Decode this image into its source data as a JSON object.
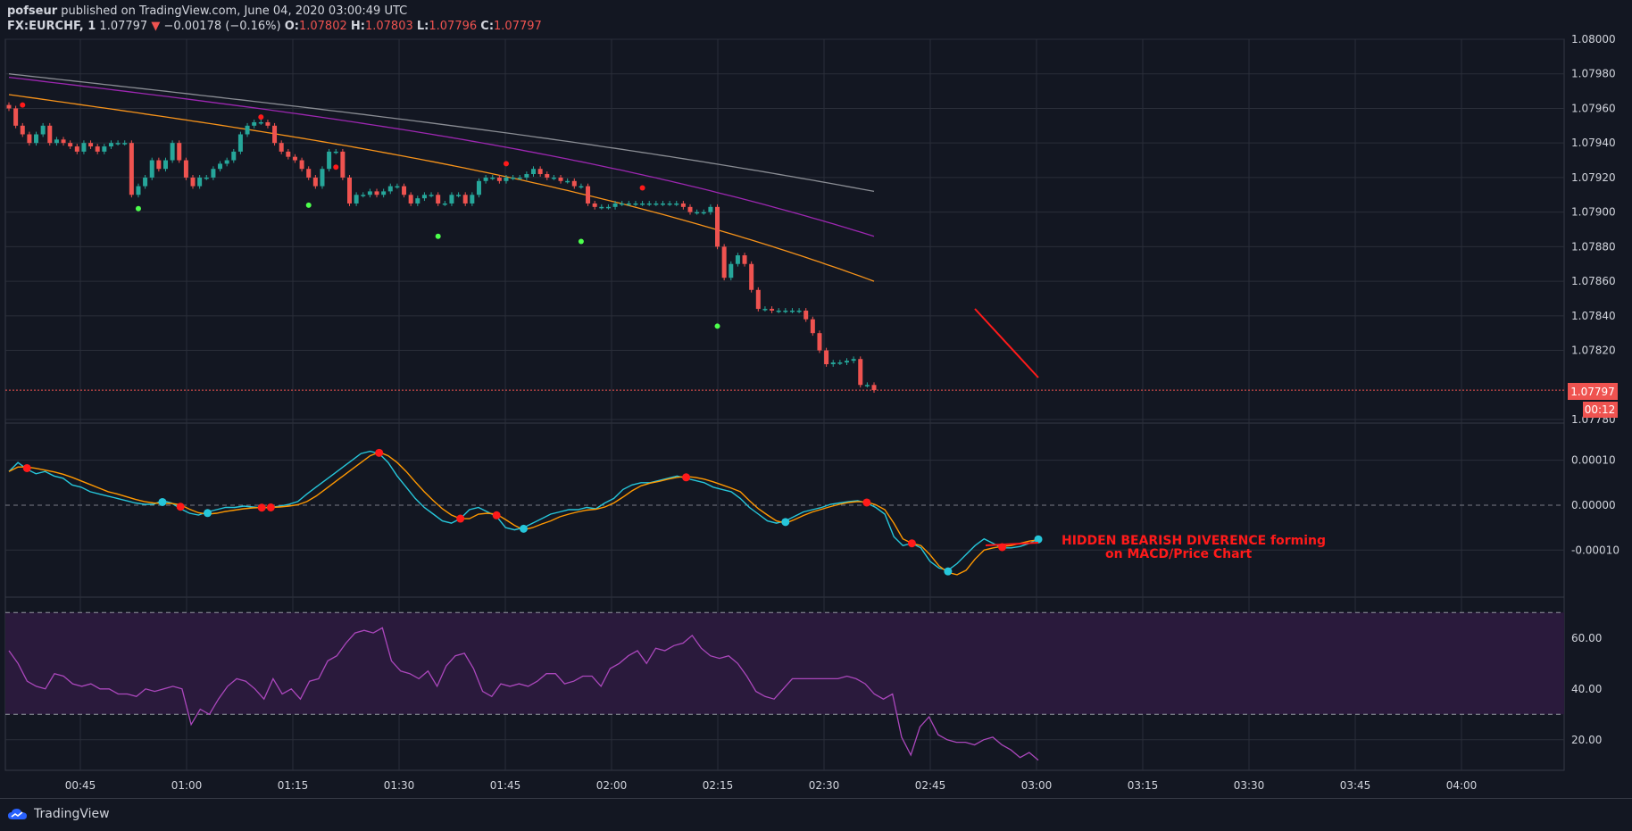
{
  "header": {
    "publisher": "pofseur",
    "published_text": "published on TradingView.com, June 04, 2020 03:00:49 UTC",
    "symbol": "FX:EURCHF, 1",
    "last": "1.07797",
    "change_arrow": "▼",
    "change": "−0.00178 (−0.16%)",
    "o_label": "O:",
    "o": "1.07802",
    "h_label": "H:",
    "h": "1.07803",
    "l_label": "L:",
    "l": "1.07796",
    "c_label": "C:",
    "c": "1.07797"
  },
  "colors": {
    "background": "#131722",
    "grid": "#2a2e39",
    "up": "#26a69a",
    "down": "#ef5350",
    "ma_gray": "#8a8d94",
    "ma_purple": "#9c27b0",
    "ma_orange": "#f7931a",
    "macd": "#26c6da",
    "signal": "#ff9800",
    "rsi": "#ab47bc",
    "rsi_band": "#2a1a3c",
    "annotation": "#ff1a1a",
    "text": "#d1d4dc"
  },
  "price_badge": {
    "value": "1.07797",
    "countdown": "00:12"
  },
  "annotation": {
    "line1": "HIDDEN BEARISH DIVERENCE forming",
    "line2": "on MACD/Price Chart"
  },
  "footer": {
    "logo_text": "TradingView",
    "logo_icon": "tradingview-cloud-icon"
  },
  "chart_data": [
    {
      "type": "candlestick",
      "title": "FX:EURCHF, 1",
      "ylim": [
        1.0778,
        1.08
      ],
      "y_ticks": [
        "1.08000",
        "1.07980",
        "1.07960",
        "1.07940",
        "1.07920",
        "1.07900",
        "1.07880",
        "1.07860",
        "1.07840",
        "1.07820",
        "1.07780"
      ],
      "x_ticks": [
        "00:45",
        "01:00",
        "01:15",
        "01:30",
        "01:45",
        "02:00",
        "02:15",
        "02:30",
        "02:45",
        "03:00",
        "03:15",
        "03:30",
        "03:45",
        "04:00"
      ],
      "current_price": 1.07797,
      "moving_averages": [
        {
          "color": "gray",
          "start": 1.0798,
          "end": 1.07912
        },
        {
          "color": "purple",
          "start": 1.07978,
          "end": 1.07886
        },
        {
          "color": "orange",
          "start": 1.07968,
          "end": 1.0786
        }
      ],
      "candles_close": [
        1.0796,
        1.0795,
        1.07945,
        1.0794,
        1.07945,
        1.0795,
        1.0794,
        1.07942,
        1.0794,
        1.07938,
        1.07935,
        1.0794,
        1.07938,
        1.07935,
        1.07938,
        1.0794,
        1.0794,
        1.0794,
        1.0791,
        1.07915,
        1.0792,
        1.0793,
        1.07925,
        1.0793,
        1.0794,
        1.0793,
        1.0792,
        1.07915,
        1.0792,
        1.0792,
        1.07925,
        1.07928,
        1.0793,
        1.07935,
        1.07945,
        1.0795,
        1.07952,
        1.07952,
        1.0795,
        1.0794,
        1.07935,
        1.07932,
        1.0793,
        1.07925,
        1.0792,
        1.07915,
        1.07925,
        1.07935,
        1.07935,
        1.0792,
        1.07905,
        1.0791,
        1.0791,
        1.07912,
        1.0791,
        1.07912,
        1.07915,
        1.07915,
        1.0791,
        1.07905,
        1.07908,
        1.0791,
        1.0791,
        1.07905,
        1.07905,
        1.0791,
        1.0791,
        1.07905,
        1.0791,
        1.07918,
        1.0792,
        1.0792,
        1.07918,
        1.0792,
        1.0792,
        1.0792,
        1.07922,
        1.07925,
        1.07922,
        1.0792,
        1.0792,
        1.07918,
        1.07918,
        1.07915,
        1.07915,
        1.07905,
        1.07903,
        1.07903,
        1.07903,
        1.07905,
        1.07905,
        1.07905,
        1.07905,
        1.07905,
        1.07905,
        1.07905,
        1.07905,
        1.07905,
        1.07905,
        1.07903,
        1.079,
        1.079,
        1.079,
        1.07903,
        1.0788,
        1.07862,
        1.0787,
        1.07875,
        1.0787,
        1.07855,
        1.07844,
        1.07844,
        1.07843,
        1.07843,
        1.07843,
        1.07843,
        1.07843,
        1.07838,
        1.0783,
        1.0782,
        1.07812,
        1.07813,
        1.07813,
        1.07814,
        1.07815,
        1.078,
        1.078,
        1.07797
      ],
      "signal_dots": [
        {
          "i": 2,
          "y": 1.07962,
          "color": "red"
        },
        {
          "i": 19,
          "y": 1.07902,
          "color": "green"
        },
        {
          "i": 37,
          "y": 1.07955,
          "color": "red"
        },
        {
          "i": 44,
          "y": 1.07904,
          "color": "green"
        },
        {
          "i": 48,
          "y": 1.07926,
          "color": "red"
        },
        {
          "i": 63,
          "y": 1.07886,
          "color": "green"
        },
        {
          "i": 73,
          "y": 1.07928,
          "color": "red"
        },
        {
          "i": 84,
          "y": 1.07883,
          "color": "green"
        },
        {
          "i": 93,
          "y": 1.07914,
          "color": "red"
        },
        {
          "i": 104,
          "y": 1.07834,
          "color": "green"
        }
      ]
    },
    {
      "type": "line",
      "title": "MACD",
      "ylim": [
        -1.75e-05,
        1.55e-05
      ],
      "y_ticks": [
        "0.00010",
        "0.00000",
        "-0.00010"
      ],
      "series": [
        {
          "name": "",
          "color": "cyan",
          "values": [
            7.5e-06,
            9.5e-06,
            8e-06,
            7e-06,
            7.5e-06,
            6.5e-06,
            6e-06,
            4.5e-06,
            4e-06,
            3e-06,
            2.5e-06,
            2e-06,
            1.5e-06,
            1e-06,
            5e-07,
            2e-07,
            2e-07,
            1e-06,
            5e-07,
            -8e-07,
            -1.8e-06,
            -2.2e-06,
            -1.5e-06,
            -1e-06,
            -5e-07,
            -5e-07,
            -2e-07,
            -4e-07,
            -6e-07,
            -5e-07,
            -2e-07,
            2e-07,
            8e-07,
            2.5e-06,
            4e-06,
            5.5e-06,
            7e-06,
            8.5e-06,
            1e-05,
            1.15e-05,
            1.2e-05,
            1.15e-05,
            9.5e-06,
            6.5e-06,
            4e-06,
            1.5e-06,
            -5e-07,
            -2e-06,
            -3.5e-06,
            -4e-06,
            -3e-06,
            -1e-06,
            -5e-07,
            -1.5e-06,
            -2.5e-06,
            -5e-06,
            -5.5e-06,
            -5e-06,
            -4e-06,
            -3e-06,
            -2e-06,
            -1.5e-06,
            -1e-06,
            -1e-06,
            -5e-07,
            -8e-07,
            5e-07,
            1.5e-06,
            3.5e-06,
            4.5e-06,
            5e-06,
            5e-06,
            5.5e-06,
            6e-06,
            6.5e-06,
            6e-06,
            5.5e-06,
            5e-06,
            4e-06,
            3.5e-06,
            3e-06,
            1.5e-06,
            -5e-07,
            -2e-06,
            -3.5e-06,
            -4e-06,
            -3.5e-06,
            -2.5e-06,
            -1.5e-06,
            -1e-06,
            -5e-07,
            2e-07,
            5e-07,
            8e-07,
            1e-06,
            5e-07,
            -5e-07,
            -2e-06,
            -7e-06,
            -9e-06,
            -8.5e-06,
            -9.5e-06,
            -1.25e-05,
            -1.4e-05,
            -1.45e-05,
            -1.3e-05,
            -1.1e-05,
            -9e-06,
            -7.5e-06,
            -8.5e-06,
            -9.5e-06,
            -9.5e-06,
            -9.2e-06,
            -8.5e-06,
            -7.5e-06
          ]
        },
        {
          "name": "",
          "color": "orange",
          "values": [
            7.5e-06,
            8.5e-06,
            8.5e-06,
            8.2e-06,
            7.8e-06,
            7.4e-06,
            6.9e-06,
            6.2e-06,
            5.4e-06,
            4.6e-06,
            3.8e-06,
            3e-06,
            2.5e-06,
            1.9e-06,
            1.3e-06,
            8e-07,
            5e-07,
            4e-07,
            4e-07,
            1e-07,
            -9e-07,
            -1.7e-06,
            -2e-06,
            -1.8e-06,
            -1.4e-06,
            -1.1e-06,
            -8e-07,
            -6e-07,
            -5e-07,
            -5e-07,
            -4e-07,
            -2e-07,
            1e-07,
            8e-07,
            2e-06,
            3.5e-06,
            5e-06,
            6.5e-06,
            8e-06,
            9.5e-06,
            1.1e-05,
            1.18e-05,
            1.1e-05,
            9.5e-06,
            7.5e-06,
            5.2e-06,
            3e-06,
            1e-06,
            -8e-07,
            -2.2e-06,
            -3e-06,
            -3e-06,
            -2e-06,
            -1.8e-06,
            -2e-06,
            -3.2e-06,
            -4.5e-06,
            -5.5e-06,
            -5e-06,
            -4.2e-06,
            -3.5e-06,
            -2.6e-06,
            -2e-06,
            -1.5e-06,
            -1.1e-06,
            -9e-07,
            -4e-07,
            5e-07,
            1.8e-06,
            3.2e-06,
            4.3e-06,
            4.9e-06,
            5.3e-06,
            5.8e-06,
            6.2e-06,
            6.4e-06,
            6.2e-06,
            5.8e-06,
            5.2e-06,
            4.5e-06,
            3.8e-06,
            3e-06,
            1e-06,
            -8e-07,
            -2.2e-06,
            -3.5e-06,
            -4e-06,
            -3.2e-06,
            -2.3e-06,
            -1.5e-06,
            -9e-07,
            -3e-07,
            2e-07,
            6e-07,
            8e-07,
            7e-07,
            1e-07,
            -1e-06,
            -4e-06,
            -7.5e-06,
            -8.5e-06,
            -9e-06,
            -1.1e-05,
            -1.35e-05,
            -1.5e-05,
            -1.55e-05,
            -1.45e-05,
            -1.2e-05,
            -1e-05,
            -9.5e-06,
            -9.2e-06,
            -9e-06,
            -8.5e-06,
            -8e-06,
            -7.7e-06
          ]
        }
      ]
    },
    {
      "type": "line",
      "title": "RSI",
      "ylim": [
        8,
        75
      ],
      "y_ticks": [
        "60.00",
        "40.00",
        "20.00"
      ],
      "bands": [
        30,
        70
      ],
      "series": [
        {
          "name": "",
          "color": "purple",
          "values": [
            55,
            50,
            43,
            41,
            40,
            46,
            45,
            42,
            41,
            42,
            40,
            40,
            38,
            38,
            37,
            40,
            39,
            40,
            41,
            40,
            26,
            32,
            30,
            36,
            41,
            44,
            43,
            40,
            36,
            44,
            38,
            40,
            36,
            43,
            44,
            51,
            53,
            58,
            62,
            63,
            62,
            64,
            51,
            47,
            46,
            44,
            47,
            41,
            49,
            53,
            54,
            48,
            39,
            37,
            42,
            41,
            42,
            41,
            43,
            46,
            46,
            42,
            43,
            45,
            45,
            41,
            48,
            50,
            53,
            55,
            50,
            56,
            55,
            57,
            58,
            61,
            56,
            53,
            52,
            53,
            50,
            45,
            39,
            37,
            36,
            40,
            44,
            44,
            44,
            44,
            44,
            44,
            45,
            44,
            42,
            38,
            36,
            38,
            21,
            14,
            25,
            29,
            22,
            20,
            19,
            19,
            18,
            20,
            21,
            18,
            16,
            13,
            15,
            12
          ]
        }
      ]
    }
  ]
}
